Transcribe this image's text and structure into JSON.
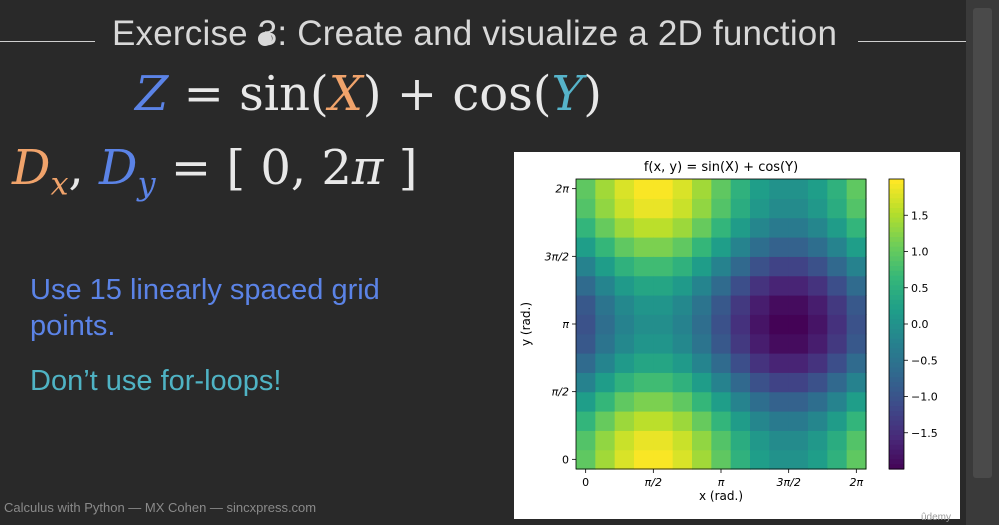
{
  "slide": {
    "title": "Exercise 3: Create and visualize a 2D function",
    "equation1": {
      "lhs": "Z",
      "eq": "=",
      "sin": "sin(",
      "x": "X",
      "mid": ") + cos(",
      "y": "Y",
      "end": ")"
    },
    "equation2": {
      "dx": "D",
      "dx_sub": "x",
      "comma": ", ",
      "dy": "D",
      "dy_sub": "y",
      "rhs": " = [ 0, 2",
      "pi": "π",
      "close": " ]"
    },
    "note1": "Use 15 linearly spaced grid",
    "note1b": "points.",
    "note2": "Don’t use for-loops!",
    "footer": "Calculus with Python — MX Cohen — sincxpress.com",
    "logo": "ûdemy"
  },
  "colors": {
    "accent_blue": "#5b83e6",
    "accent_orange": "#f0a36b",
    "accent_cyan": "#56b3c9"
  },
  "chart_data": {
    "type": "heatmap",
    "title": "f(x, y) = sin(X) + cos(Y)",
    "xlabel": "x (rad.)",
    "ylabel": "y (rad.)",
    "grid_points": 15,
    "x_range": [
      0,
      6.2832
    ],
    "y_range": [
      0,
      6.2832
    ],
    "x_ticks": [
      {
        "value": 0,
        "label": "0"
      },
      {
        "value": 1.5708,
        "label": "π/2"
      },
      {
        "value": 3.1416,
        "label": "π"
      },
      {
        "value": 4.7124,
        "label": "3π/2"
      },
      {
        "value": 6.2832,
        "label": "2π"
      }
    ],
    "y_ticks": [
      {
        "value": 0,
        "label": "0"
      },
      {
        "value": 1.5708,
        "label": "π/2"
      },
      {
        "value": 3.1416,
        "label": "π"
      },
      {
        "value": 4.7124,
        "label": "3π/2"
      },
      {
        "value": 6.2832,
        "label": "2π"
      }
    ],
    "colorbar": {
      "colormap": "viridis",
      "vmin": -2,
      "vmax": 2,
      "ticks": [
        "1.5",
        "1.0",
        "0.5",
        "0.0",
        "−0.5",
        "−1.0",
        "−1.5"
      ],
      "tick_values": [
        1.5,
        1.0,
        0.5,
        0.0,
        -0.5,
        -1.0,
        -1.5
      ]
    },
    "grid": false
  }
}
